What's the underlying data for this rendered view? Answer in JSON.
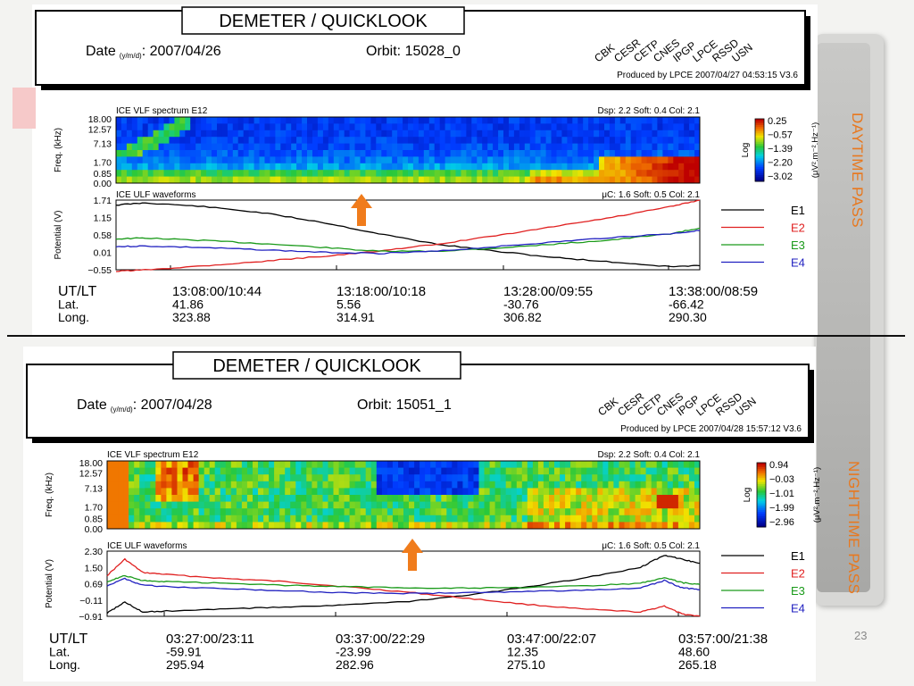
{
  "slide": {
    "number": "23",
    "day_label": "DAYTIME PASS",
    "night_label": "NIGHTTIME PASS"
  },
  "panels": [
    {
      "title": "DEMETER / QUICKLOOK",
      "date_label": "Date",
      "date_unit": "(y/m/d)",
      "date_value": ": 2007/04/26",
      "orbit": "Orbit: 15028_0",
      "institutions": [
        "CBK",
        "CESR",
        "CETP",
        "CNES",
        "IPGP",
        "LPCE",
        "RSSD",
        "USN"
      ],
      "produced": "Produced by LPCE   2007/04/27 04:53:15   V3.6",
      "vlf_title": "ICE VLF spectrum   E12",
      "vlf_info": "Dsp: 2.2  Soft: 0.4  Col: 2.1",
      "ulf_title": "ICE ULF waveforms",
      "ulf_info": "μC: 1.6  Soft: 0.5  Col: 2.1",
      "colorbar_label": "Log",
      "colorbar_unit": "(μV².m⁻².Hz⁻¹)",
      "row_labels": [
        "UT/LT",
        "Lat.",
        "Long."
      ],
      "columns": [
        {
          "time": "13:08:00/10:44",
          "lat": "41.86",
          "lon": "323.88"
        },
        {
          "time": "13:18:00/10:18",
          "lat": "5.56",
          "lon": "314.91"
        },
        {
          "time": "13:28:00/09:55",
          "lat": "-30.76",
          "lon": "306.82"
        },
        {
          "time": "13:38:00/08:59",
          "lat": "-66.42",
          "lon": "290.30"
        }
      ],
      "arrow_color": "#f07c1c"
    },
    {
      "title": "DEMETER / QUICKLOOK",
      "date_label": "Date",
      "date_unit": "(y/m/d)",
      "date_value": ": 2007/04/28",
      "orbit": "Orbit: 15051_1",
      "institutions": [
        "CBK",
        "CESR",
        "CETP",
        "CNES",
        "IPGP",
        "LPCE",
        "RSSD",
        "USN"
      ],
      "produced": "Produced by LPCE   2007/04/28 15:57:12   V3.6",
      "vlf_title": "ICE VLF spectrum   E12",
      "vlf_info": "Dsp: 2.2  Soft: 0.4  Col: 2.1",
      "ulf_title": "ICE ULF waveforms",
      "ulf_info": "μC: 1.6  Soft: 0.5  Col: 2.1",
      "colorbar_label": "Log",
      "colorbar_unit": "(μV².m⁻².Hz⁻¹)",
      "row_labels": [
        "UT/LT",
        "Lat.",
        "Long."
      ],
      "columns": [
        {
          "time": "03:27:00/23:11",
          "lat": "-59.91",
          "lon": "295.94"
        },
        {
          "time": "03:37:00/22:29",
          "lat": "-23.99",
          "lon": "282.96"
        },
        {
          "time": "03:47:00/22:07",
          "lat": "12.35",
          "lon": "275.10"
        },
        {
          "time": "03:57:00/21:38",
          "lat": "48.60",
          "lon": "265.18"
        }
      ],
      "arrow_color": "#f07c1c"
    }
  ],
  "chart_data": [
    {
      "type": "heatmap",
      "title": "ICE VLF spectrum   E12",
      "ylabel": "Freq. (kHz)",
      "y_ticks": [
        "18.00",
        "12.57",
        "7.13",
        "1.70",
        "0.85",
        "0.00"
      ],
      "colorbar_ticks": [
        "0.25",
        "−0.57",
        "−1.39",
        "−2.20",
        "−3.02"
      ],
      "colorbar_range": [
        -3.02,
        0.25
      ]
    },
    {
      "type": "line",
      "title": "ICE ULF waveforms",
      "ylabel": "Potential (V)",
      "y_ticks": [
        "1.71",
        "1.15",
        "0.58",
        "0.01",
        "−0.55"
      ],
      "ylim": [
        -0.55,
        1.71
      ],
      "x_ticks": [
        "13:08:00",
        "13:18:00",
        "13:28:00",
        "13:38:00"
      ],
      "x": [
        0,
        0.05,
        0.15,
        0.25,
        0.35,
        0.45,
        0.55,
        0.65,
        0.75,
        0.85,
        0.95,
        1.0
      ],
      "series": [
        {
          "name": "E1",
          "color": "#000000",
          "values": [
            1.55,
            1.62,
            1.5,
            1.3,
            1.0,
            0.62,
            0.28,
            0.05,
            -0.15,
            -0.3,
            -0.45,
            -0.42
          ]
        },
        {
          "name": "E2",
          "color": "#e02020",
          "values": [
            -0.6,
            -0.55,
            -0.42,
            -0.28,
            -0.12,
            0.05,
            0.28,
            0.55,
            0.85,
            1.15,
            1.5,
            1.71
          ]
        },
        {
          "name": "E3",
          "color": "#1a9a1a",
          "values": [
            0.45,
            0.48,
            0.4,
            0.3,
            0.18,
            0.05,
            0.05,
            0.15,
            0.28,
            0.42,
            0.62,
            0.8
          ]
        },
        {
          "name": "E4",
          "color": "#2020c0",
          "values": [
            0.2,
            0.22,
            0.17,
            0.1,
            0.02,
            -0.02,
            0.05,
            0.2,
            0.35,
            0.5,
            0.62,
            0.72
          ]
        }
      ]
    },
    {
      "type": "heatmap",
      "title": "ICE VLF spectrum   E12",
      "ylabel": "Freq. (kHz)",
      "y_ticks": [
        "18.00",
        "12.57",
        "7.13",
        "1.70",
        "0.85",
        "0.00"
      ],
      "colorbar_ticks": [
        "0.94",
        "−0.03",
        "−1.01",
        "−1.99",
        "−2.96"
      ],
      "colorbar_range": [
        -2.96,
        0.94
      ]
    },
    {
      "type": "line",
      "title": "ICE ULF waveforms",
      "ylabel": "Potential (V)",
      "y_ticks": [
        "2.30",
        "1.50",
        "0.69",
        "−0.11",
        "−0.91"
      ],
      "ylim": [
        -0.91,
        2.3
      ],
      "x_ticks": [
        "03:27:00",
        "03:37:00",
        "03:47:00",
        "03:57:00"
      ],
      "x": [
        0,
        0.03,
        0.06,
        0.1,
        0.2,
        0.3,
        0.4,
        0.5,
        0.6,
        0.7,
        0.8,
        0.9,
        0.94,
        0.97,
        1.0
      ],
      "series": [
        {
          "name": "E1",
          "color": "#000000",
          "values": [
            -0.75,
            -0.2,
            -0.7,
            -0.65,
            -0.55,
            -0.45,
            -0.35,
            -0.2,
            0.1,
            0.5,
            0.95,
            1.5,
            2.1,
            1.9,
            1.7
          ]
        },
        {
          "name": "E2",
          "color": "#e02020",
          "values": [
            1.1,
            1.9,
            1.25,
            1.15,
            0.95,
            0.8,
            0.55,
            0.3,
            0.0,
            -0.3,
            -0.55,
            -0.7,
            -0.4,
            -0.8,
            -0.9
          ]
        },
        {
          "name": "E3",
          "color": "#1a9a1a",
          "values": [
            0.8,
            1.1,
            0.85,
            0.8,
            0.72,
            0.62,
            0.55,
            0.5,
            0.48,
            0.5,
            0.58,
            0.72,
            1.0,
            0.75,
            0.65
          ]
        },
        {
          "name": "E4",
          "color": "#2020c0",
          "values": [
            0.6,
            0.95,
            0.62,
            0.55,
            0.45,
            0.35,
            0.25,
            0.22,
            0.25,
            0.3,
            0.38,
            0.48,
            0.85,
            0.5,
            0.4
          ]
        }
      ]
    }
  ]
}
